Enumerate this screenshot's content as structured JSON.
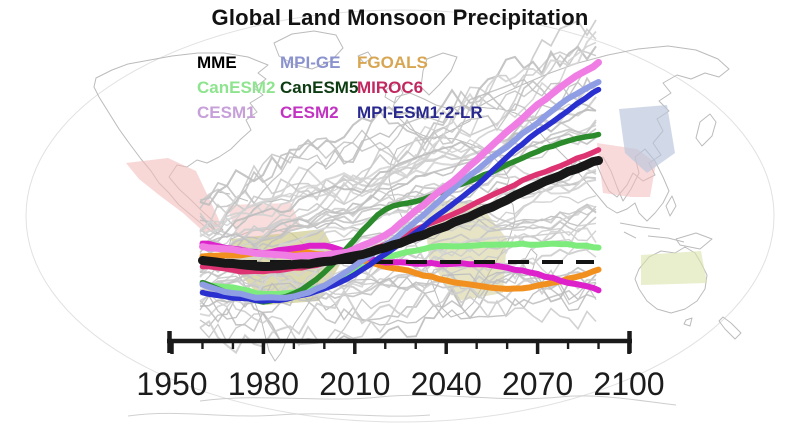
{
  "chart_data": {
    "type": "line",
    "title": "Global Land Monsoon Precipitation",
    "xlabel": "",
    "ylabel": "",
    "x_ticks": [
      1950,
      1980,
      2010,
      2040,
      2070,
      2100
    ],
    "x_minor_step": 10,
    "axis_year_range": [
      1950,
      2100
    ],
    "data_year_range": [
      1960,
      2090
    ],
    "y_axis_note": "no y-axis shown; values are precipitation anomaly in relative units, dashed line = zero baseline",
    "baseline": {
      "value": 0,
      "style": "dashed",
      "color": "#141414"
    },
    "ensemble": {
      "description": "spread of individual model runs",
      "color": "#c7c7c7",
      "count": 48
    },
    "series": [
      {
        "name": "MME",
        "color": "#181818",
        "width": 9,
        "z": 10,
        "points": [
          [
            1960,
            1
          ],
          [
            1970,
            -4
          ],
          [
            1980,
            -7
          ],
          [
            1990,
            -5
          ],
          [
            2000,
            -2
          ],
          [
            2010,
            4
          ],
          [
            2020,
            13
          ],
          [
            2030,
            24
          ],
          [
            2040,
            35
          ],
          [
            2050,
            48
          ],
          [
            2060,
            61
          ],
          [
            2070,
            75
          ],
          [
            2080,
            88
          ],
          [
            2090,
            100
          ]
        ]
      },
      {
        "name": "MPI-GE",
        "color": "#8f9de4",
        "width": 6,
        "z": 8,
        "points": [
          [
            1960,
            -23
          ],
          [
            1970,
            -29
          ],
          [
            1980,
            -34
          ],
          [
            1990,
            -32
          ],
          [
            2000,
            -22
          ],
          [
            2010,
            -4
          ],
          [
            2020,
            18
          ],
          [
            2030,
            41
          ],
          [
            2040,
            65
          ],
          [
            2050,
            90
          ],
          [
            2060,
            114
          ],
          [
            2070,
            138
          ],
          [
            2080,
            161
          ],
          [
            2090,
            180
          ]
        ]
      },
      {
        "name": "FGOALS",
        "color": "#f2901f",
        "width": 6,
        "z": 2,
        "points": [
          [
            1960,
            5
          ],
          [
            1970,
            7
          ],
          [
            1980,
            9
          ],
          [
            1990,
            10
          ],
          [
            2000,
            8
          ],
          [
            2010,
            3
          ],
          [
            2020,
            -4
          ],
          [
            2030,
            -10
          ],
          [
            2040,
            -17
          ],
          [
            2050,
            -23
          ],
          [
            2060,
            -28
          ],
          [
            2070,
            -26
          ],
          [
            2080,
            -19
          ],
          [
            2090,
            -8
          ]
        ]
      },
      {
        "name": "CanESM2",
        "color": "#7dec7d",
        "width": 6,
        "z": 1,
        "points": [
          [
            1960,
            -22
          ],
          [
            1970,
            -27
          ],
          [
            1980,
            -33
          ],
          [
            1990,
            -33
          ],
          [
            2000,
            -25
          ],
          [
            2010,
            -9
          ],
          [
            2020,
            5
          ],
          [
            2030,
            13
          ],
          [
            2040,
            17
          ],
          [
            2050,
            19
          ],
          [
            2060,
            20
          ],
          [
            2070,
            19
          ],
          [
            2080,
            17
          ],
          [
            2090,
            15
          ]
        ]
      },
      {
        "name": "CanESM5",
        "color": "#2b8a2b",
        "width": 5.5,
        "z": 6,
        "points": [
          [
            1960,
            -21
          ],
          [
            1970,
            -31
          ],
          [
            1980,
            -38
          ],
          [
            1990,
            -30
          ],
          [
            2000,
            -8
          ],
          [
            2010,
            25
          ],
          [
            2020,
            55
          ],
          [
            2030,
            63
          ],
          [
            2040,
            72
          ],
          [
            2050,
            84
          ],
          [
            2060,
            97
          ],
          [
            2070,
            110
          ],
          [
            2080,
            119
          ],
          [
            2090,
            125
          ]
        ]
      },
      {
        "name": "MIROC6",
        "color": "#dd3372",
        "width": 5.5,
        "z": 5,
        "points": [
          [
            1960,
            -5
          ],
          [
            1970,
            -9
          ],
          [
            1980,
            -11
          ],
          [
            1990,
            -8
          ],
          [
            2000,
            -3
          ],
          [
            2010,
            4
          ],
          [
            2020,
            16
          ],
          [
            2030,
            30
          ],
          [
            2040,
            43
          ],
          [
            2050,
            57
          ],
          [
            2060,
            72
          ],
          [
            2070,
            87
          ],
          [
            2080,
            100
          ],
          [
            2090,
            111
          ]
        ]
      },
      {
        "name": "CESM1",
        "color": "#ef7de4",
        "width": 7,
        "z": 9,
        "points": [
          [
            1960,
            15
          ],
          [
            1970,
            10
          ],
          [
            1980,
            6
          ],
          [
            1990,
            4
          ],
          [
            2000,
            5
          ],
          [
            2010,
            11
          ],
          [
            2020,
            26
          ],
          [
            2030,
            49
          ],
          [
            2040,
            74
          ],
          [
            2050,
            100
          ],
          [
            2060,
            128
          ],
          [
            2070,
            155
          ],
          [
            2080,
            178
          ],
          [
            2090,
            198
          ]
        ]
      },
      {
        "name": "CESM2",
        "color": "#dd22cc",
        "width": 6,
        "z": 3,
        "points": [
          [
            1960,
            18
          ],
          [
            1970,
            13
          ],
          [
            1980,
            9
          ],
          [
            1990,
            13
          ],
          [
            2000,
            14
          ],
          [
            2010,
            7
          ],
          [
            2020,
            1
          ],
          [
            2030,
            -1
          ],
          [
            2040,
            -2
          ],
          [
            2050,
            -4
          ],
          [
            2060,
            -7
          ],
          [
            2070,
            -13
          ],
          [
            2080,
            -21
          ],
          [
            2090,
            -29
          ]
        ]
      },
      {
        "name": "MPI-ESM1-2-LR",
        "color": "#2a30cf",
        "width": 5.5,
        "z": 7,
        "points": [
          [
            1960,
            -31
          ],
          [
            1970,
            -36
          ],
          [
            1980,
            -40
          ],
          [
            1990,
            -37
          ],
          [
            2000,
            -27
          ],
          [
            2010,
            -10
          ],
          [
            2020,
            10
          ],
          [
            2030,
            32
          ],
          [
            2040,
            55
          ],
          [
            2050,
            79
          ],
          [
            2060,
            104
          ],
          [
            2070,
            128
          ],
          [
            2080,
            151
          ],
          [
            2090,
            171
          ]
        ]
      }
    ],
    "legend_position": "top-left inside plot"
  },
  "legend": {
    "items": [
      {
        "label": "MME",
        "color": "#000000"
      },
      {
        "label": "MPI-GE",
        "color": "#8b93cf"
      },
      {
        "label": "FGOALS",
        "color": "#d8a652"
      },
      {
        "label": "CanESM2",
        "color": "#8fe48f"
      },
      {
        "label": "CanESM5",
        "color": "#0e3c12"
      },
      {
        "label": "MIROC6",
        "color": "#c22860"
      },
      {
        "label": "CESM1",
        "color": "#c79fd9"
      },
      {
        "label": "CESM2",
        "color": "#c233c2"
      },
      {
        "label": "MPI-ESM1-2-LR",
        "color": "#28288e"
      }
    ]
  },
  "map": {
    "coastline_color": "#b4b4b4",
    "regions": [
      {
        "name": "north-american-monsoon",
        "color": "#f3bcbc"
      },
      {
        "name": "south-american-monsoon-north",
        "color": "#f3bcbc"
      },
      {
        "name": "south-american-monsoon",
        "color": "#cdc98b"
      },
      {
        "name": "african-monsoon",
        "color": "#cdc98b"
      },
      {
        "name": "south-asian-monsoon",
        "color": "#f3bcbc"
      },
      {
        "name": "east-asian-monsoon",
        "color": "#b9c4dc"
      },
      {
        "name": "australian-monsoon",
        "color": "#dae3ab"
      }
    ]
  }
}
